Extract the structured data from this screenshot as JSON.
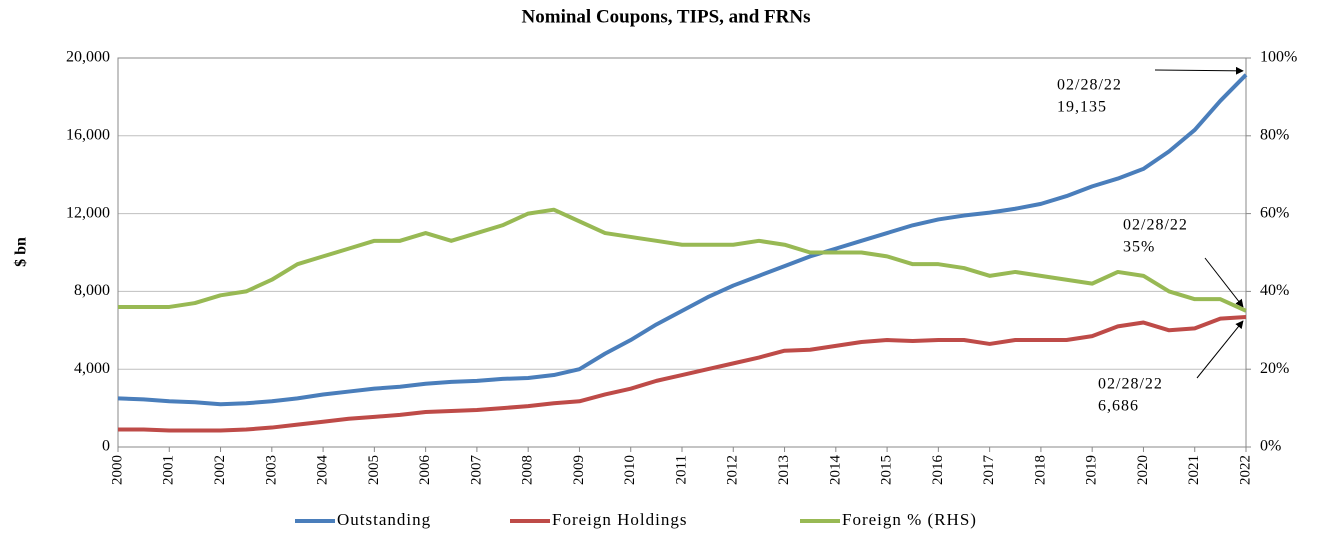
{
  "chart_data": {
    "type": "line",
    "title": "Nominal Coupons, TIPS, and FRNs",
    "y_label": "$ bn",
    "x": [
      2000,
      2000.5,
      2001,
      2001.5,
      2002,
      2002.5,
      2003,
      2003.5,
      2004,
      2004.5,
      2005,
      2005.5,
      2006,
      2006.5,
      2007,
      2007.5,
      2008,
      2008.5,
      2009,
      2009.5,
      2010,
      2010.5,
      2011,
      2011.5,
      2012,
      2012.5,
      2013,
      2013.5,
      2014,
      2014.5,
      2015,
      2015.5,
      2016,
      2016.5,
      2017,
      2017.5,
      2018,
      2018.5,
      2019,
      2019.5,
      2020,
      2020.5,
      2021,
      2021.5,
      2022
    ],
    "xlim": [
      2000,
      2022
    ],
    "xticks": [
      2000,
      2001,
      2002,
      2003,
      2004,
      2005,
      2006,
      2007,
      2008,
      2009,
      2010,
      2011,
      2012,
      2013,
      2014,
      2015,
      2016,
      2017,
      2018,
      2019,
      2020,
      2021,
      2022
    ],
    "ylim": [
      0,
      20000
    ],
    "yticks": [
      0,
      {
        "value": 4000,
        "label": "4,000"
      },
      {
        "value": 8000,
        "label": "8,000"
      },
      {
        "value": 12000,
        "label": "12,000"
      },
      {
        "value": 16000,
        "label": "16,000"
      },
      {
        "value": 20000,
        "label": "20,000"
      }
    ],
    "y2lim": [
      0,
      100
    ],
    "y2ticks": [
      {
        "value": 0,
        "label": "0%"
      },
      {
        "value": 20,
        "label": "20%"
      },
      {
        "value": 40,
        "label": "40%"
      },
      {
        "value": 60,
        "label": "60%"
      },
      {
        "value": 80,
        "label": "80%"
      },
      {
        "value": 100,
        "label": "100%"
      }
    ],
    "grid": true,
    "legend": "bottom",
    "series": [
      {
        "name": "Outstanding",
        "color": "#4a7ebb",
        "values": [
          2500,
          2450,
          2350,
          2300,
          2200,
          2250,
          2350,
          2500,
          2700,
          2850,
          3000,
          3100,
          3250,
          3350,
          3400,
          3500,
          3550,
          3700,
          4000,
          4800,
          5500,
          6300,
          7000,
          7700,
          8300,
          8800,
          9300,
          9800,
          10200,
          10600,
          11000,
          11400,
          11700,
          11900,
          12050,
          12250,
          12500,
          12900,
          13400,
          13800,
          14300,
          15200,
          16300,
          17800,
          19135
        ]
      },
      {
        "name": "Foreign Holdings",
        "color": "#be4b48",
        "values": [
          900,
          900,
          850,
          850,
          850,
          900,
          1000,
          1150,
          1300,
          1450,
          1550,
          1650,
          1800,
          1850,
          1900,
          2000,
          2100,
          2250,
          2350,
          2700,
          3000,
          3400,
          3700,
          4000,
          4300,
          4600,
          4950,
          5000,
          5200,
          5400,
          5500,
          5450,
          5500,
          5500,
          5300,
          5500,
          5500,
          5500,
          5700,
          6200,
          6400,
          6000,
          6100,
          6600,
          6686
        ]
      },
      {
        "name": "Foreign % (RHS)",
        "color": "#98b954",
        "axis": "y2",
        "values": [
          36,
          36,
          36,
          37,
          39,
          40,
          43,
          47,
          49,
          51,
          53,
          53,
          55,
          53,
          55,
          57,
          60,
          61,
          58,
          55,
          54,
          53,
          52,
          52,
          52,
          53,
          52,
          50,
          50,
          50,
          49,
          47,
          47,
          46,
          44,
          45,
          44,
          43,
          42,
          45,
          44,
          40,
          38,
          38,
          35
        ]
      }
    ],
    "annotations": [
      {
        "lines": [
          "02/28/22",
          "19,135"
        ]
      },
      {
        "lines": [
          "02/28/22",
          "35%"
        ]
      },
      {
        "lines": [
          "02/28/22",
          "6,686"
        ]
      }
    ]
  }
}
